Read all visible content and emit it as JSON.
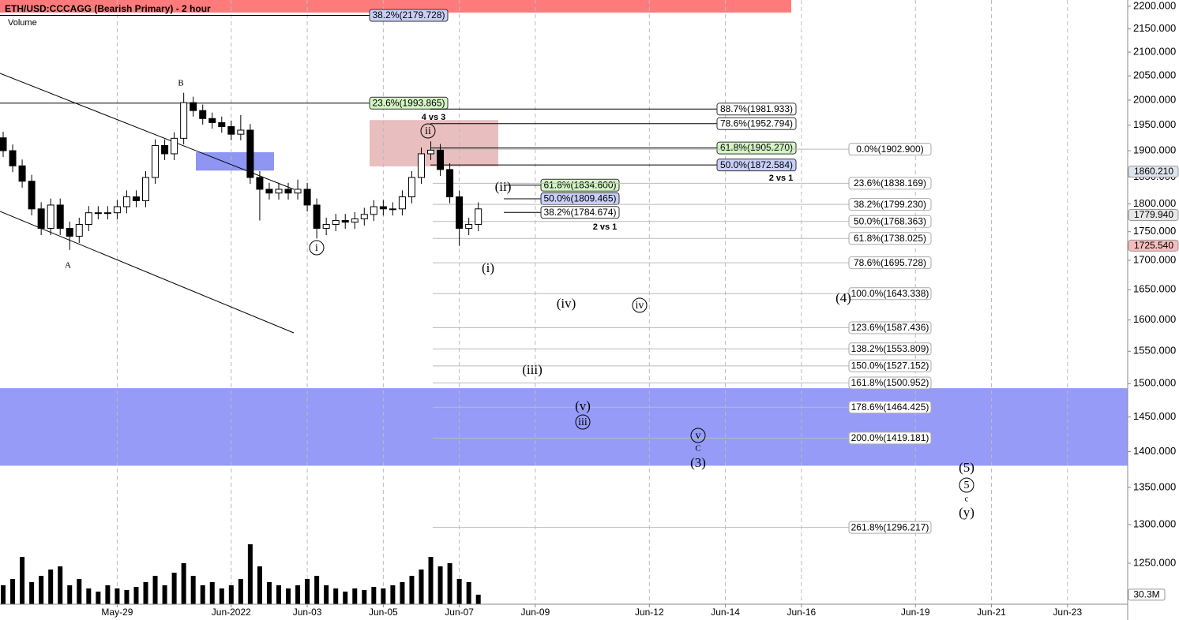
{
  "chart_data": {
    "type": "candlestick",
    "title": "ETH/USD:CCCAGG (Bearish Primary) - 2 hour",
    "volume_label": "Volume",
    "log_scale": true,
    "grid": true,
    "xlim": [
      "2022-05-25T22:00",
      "2022-06-24T14:00"
    ],
    "xticks": [
      {
        "value": "2022-05-29",
        "label": "May-29"
      },
      {
        "value": "2022-06-01",
        "label": "Jun-2022"
      },
      {
        "value": "2022-06-03",
        "label": "Jun-03"
      },
      {
        "value": "2022-06-05",
        "label": "Jun-05"
      },
      {
        "value": "2022-06-07",
        "label": "Jun-07"
      },
      {
        "value": "2022-06-09",
        "label": "Jun-09"
      },
      {
        "value": "2022-06-12",
        "label": "Jun-12"
      },
      {
        "value": "2022-06-14",
        "label": "Jun-14"
      },
      {
        "value": "2022-06-16",
        "label": "Jun-16"
      },
      {
        "value": "2022-06-19",
        "label": "Jun-19"
      },
      {
        "value": "2022-06-21",
        "label": "Jun-21"
      },
      {
        "value": "2022-06-23",
        "label": "Jun-23"
      }
    ],
    "ylim": [
      1199,
      2214
    ],
    "yticks": [
      {
        "value": 2200,
        "label": "2200.000"
      },
      {
        "value": 2150,
        "label": "2150.000"
      },
      {
        "value": 2100,
        "label": "2100.000"
      },
      {
        "value": 2050,
        "label": "2050.000"
      },
      {
        "value": 2000,
        "label": "2000.000"
      },
      {
        "value": 1950,
        "label": "1950.000"
      },
      {
        "value": 1900,
        "label": "1900.000"
      },
      {
        "value": 1850,
        "label": "1850.000"
      },
      {
        "value": 1800,
        "label": "1800.000"
      },
      {
        "value": 1750,
        "label": "1750.000"
      },
      {
        "value": 1700,
        "label": "1700.000"
      },
      {
        "value": 1650,
        "label": "1650.000"
      },
      {
        "value": 1600,
        "label": "1600.000"
      },
      {
        "value": 1550,
        "label": "1550.000"
      },
      {
        "value": 1500,
        "label": "1500.000"
      },
      {
        "value": 1450,
        "label": "1450.000"
      },
      {
        "value": 1400,
        "label": "1400.000"
      },
      {
        "value": 1350,
        "label": "1350.000"
      },
      {
        "value": 1300,
        "label": "1300.000"
      },
      {
        "value": 1250,
        "label": "1250.000"
      }
    ],
    "up_color": "#ffffff",
    "down_color": "#000000",
    "x": [
      "2022-05-26T00:00",
      "2022-05-26T06:00",
      "2022-05-26T12:00",
      "2022-05-26T18:00",
      "2022-05-27T00:00",
      "2022-05-27T06:00",
      "2022-05-27T12:00",
      "2022-05-27T18:00",
      "2022-05-28T00:00",
      "2022-05-28T06:00",
      "2022-05-28T12:00",
      "2022-05-28T18:00",
      "2022-05-29T00:00",
      "2022-05-29T06:00",
      "2022-05-29T12:00",
      "2022-05-29T18:00",
      "2022-05-30T00:00",
      "2022-05-30T06:00",
      "2022-05-30T12:00",
      "2022-05-30T18:00",
      "2022-05-31T00:00",
      "2022-05-31T06:00",
      "2022-05-31T12:00",
      "2022-05-31T18:00",
      "2022-06-01T00:00",
      "2022-06-01T06:00",
      "2022-06-01T12:00",
      "2022-06-01T18:00",
      "2022-06-02T00:00",
      "2022-06-02T06:00",
      "2022-06-02T12:00",
      "2022-06-02T18:00",
      "2022-06-03T00:00",
      "2022-06-03T06:00",
      "2022-06-03T12:00",
      "2022-06-03T18:00",
      "2022-06-04T00:00",
      "2022-06-04T06:00",
      "2022-06-04T12:00",
      "2022-06-04T18:00",
      "2022-06-05T00:00",
      "2022-06-05T06:00",
      "2022-06-05T12:00",
      "2022-06-05T18:00",
      "2022-06-06T00:00",
      "2022-06-06T06:00",
      "2022-06-06T12:00",
      "2022-06-06T18:00",
      "2022-06-07T00:00",
      "2022-06-07T06:00",
      "2022-06-07T12:00"
    ],
    "open": [
      1925,
      1900,
      1871,
      1842,
      1791,
      1756,
      1798,
      1756,
      1742,
      1763,
      1784,
      1784,
      1784,
      1795,
      1813,
      1806,
      1849,
      1910,
      1894,
      1924,
      1995,
      1979,
      1963,
      1955,
      1947,
      1932,
      1940,
      1849,
      1827,
      1820,
      1827,
      1820,
      1827,
      1798,
      1756,
      1763,
      1770,
      1767,
      1773,
      1781,
      1795,
      1791,
      1791,
      1813,
      1849,
      1894,
      1901,
      1864,
      1813,
      1756,
      1763
    ],
    "high": [
      1937,
      1912,
      1883,
      1854,
      1803,
      1810,
      1810,
      1768,
      1775,
      1796,
      1796,
      1796,
      1807,
      1825,
      1825,
      1861,
      1922,
      1922,
      1936,
      2015,
      2007,
      1991,
      1975,
      1967,
      1959,
      1970,
      1952,
      1861,
      1839,
      1839,
      1839,
      1845,
      1839,
      1810,
      1775,
      1782,
      1782,
      1785,
      1793,
      1807,
      1807,
      1803,
      1825,
      1861,
      1906,
      1918,
      1913,
      1876,
      1825,
      1775,
      1803
    ],
    "low": [
      1888,
      1859,
      1830,
      1779,
      1744,
      1744,
      1744,
      1718,
      1730,
      1751,
      1772,
      1772,
      1772,
      1783,
      1794,
      1794,
      1837,
      1882,
      1882,
      1912,
      1967,
      1951,
      1943,
      1935,
      1920,
      1920,
      1837,
      1770,
      1808,
      1808,
      1808,
      1808,
      1786,
      1738,
      1744,
      1751,
      1755,
      1755,
      1761,
      1769,
      1779,
      1779,
      1779,
      1801,
      1837,
      1882,
      1852,
      1801,
      1725,
      1744,
      1751
    ],
    "close": [
      1900,
      1871,
      1842,
      1791,
      1756,
      1798,
      1756,
      1742,
      1763,
      1784,
      1784,
      1784,
      1795,
      1813,
      1806,
      1849,
      1910,
      1894,
      1924,
      1995,
      1979,
      1963,
      1955,
      1947,
      1932,
      1940,
      1849,
      1827,
      1820,
      1827,
      1820,
      1827,
      1798,
      1756,
      1763,
      1770,
      1767,
      1773,
      1781,
      1795,
      1791,
      1791,
      1813,
      1849,
      1894,
      1901,
      1864,
      1813,
      1756,
      1763,
      1791
    ],
    "volume": [
      60,
      80,
      150,
      70,
      90,
      110,
      120,
      60,
      80,
      50,
      40,
      60,
      50,
      45,
      55,
      70,
      90,
      60,
      100,
      130,
      90,
      60,
      70,
      50,
      60,
      80,
      190,
      120,
      70,
      60,
      50,
      60,
      80,
      90,
      60,
      50,
      40,
      50,
      45,
      55,
      50,
      60,
      70,
      90,
      110,
      150,
      120,
      130,
      80,
      70,
      30.3
    ],
    "volume_color": "#000000",
    "volume_lim": [
      0,
      200
    ],
    "volume_tag": {
      "value": 30.3,
      "label": "30.3M"
    },
    "price_tags": [
      {
        "value": 1860.21,
        "label": "1860.210",
        "color": "#dfe5ef"
      },
      {
        "value": 1779.94,
        "label": "1779.940",
        "color": "#e8e8e8"
      },
      {
        "value": 1725.54,
        "label": "1725.540",
        "color": "#f6bcbc"
      }
    ],
    "zones": [
      {
        "low": 2186,
        "high": 2214,
        "color": "#ff7b7b"
      },
      {
        "low": 1870,
        "high": 1960,
        "color": "#e2a8a8"
      },
      {
        "low": 1862,
        "high": 1897,
        "color": "#8e95f2"
      },
      {
        "low": 1380,
        "high": 1493,
        "color": "#959bf6"
      }
    ],
    "fib_groups": [
      {
        "levels": [
          {
            "label": "38.2%(2179.728)",
            "value": 2179.728,
            "color": "#c9d0f7"
          },
          {
            "label": "23.6%(1993.865)",
            "value": 1993.865,
            "color": "#d3f5c3"
          }
        ]
      },
      {
        "levels": [
          {
            "label": "88.7%(1981.933)",
            "value": 1981.933,
            "color": "#ffffff"
          },
          {
            "label": "78.6%(1952.794)",
            "value": 1952.794,
            "color": "#ffffff"
          },
          {
            "label": "61.8%(1905.270)",
            "value": 1905.27,
            "color": "#d3f5c3"
          },
          {
            "label": "50.0%(1872.584)",
            "value": 1872.584,
            "color": "#c9d0f7"
          }
        ]
      },
      {
        "levels": [
          {
            "label": "61.8%(1834.600)",
            "value": 1834.6,
            "color": "#d3f5c3"
          },
          {
            "label": "50.0%(1809.465)",
            "value": 1809.465,
            "color": "#c9d0f7"
          },
          {
            "label": "38.2%(1784.674)",
            "value": 1784.674,
            "color": "#ffffff"
          }
        ]
      },
      {
        "levels": [
          {
            "label": "0.0%(1902.900)",
            "value": 1902.9,
            "color": "#ffffff"
          },
          {
            "label": "23.6%(1838.169)",
            "value": 1838.169,
            "color": "#ffffff"
          },
          {
            "label": "38.2%(1799.230)",
            "value": 1799.23,
            "color": "#ffffff"
          },
          {
            "label": "50.0%(1768.363)",
            "value": 1768.363,
            "color": "#ffffff"
          },
          {
            "label": "61.8%(1738.025)",
            "value": 1738.025,
            "color": "#ffffff"
          },
          {
            "label": "78.6%(1695.728)",
            "value": 1695.728,
            "color": "#ffffff"
          },
          {
            "label": "100.0%(1643.338)",
            "value": 1643.338,
            "color": "#ffffff"
          },
          {
            "label": "123.6%(1587.436)",
            "value": 1587.436,
            "color": "#ffffff"
          },
          {
            "label": "138.2%(1553.809)",
            "value": 1553.809,
            "color": "#ffffff"
          },
          {
            "label": "150.0%(1527.152)",
            "value": 1527.152,
            "color": "#ffffff"
          },
          {
            "label": "161.8%(1500.952)",
            "value": 1500.952,
            "color": "#ffffff"
          },
          {
            "label": "178.6%(1464.425)",
            "value": 1464.425,
            "color": "#ffffff"
          },
          {
            "label": "200.0%(1419.181)",
            "value": 1419.181,
            "color": "#ffffff"
          },
          {
            "label": "261.8%(1296.217)",
            "value": 1296.217,
            "color": "#ffffff"
          }
        ]
      }
    ],
    "annotations": [
      "4 vs 3",
      "2 vs 1",
      "2 vs 1"
    ],
    "wave_labels": [
      "B",
      "A",
      "i",
      "ii",
      "(ii)",
      "(i)",
      "(iv)",
      "iv",
      "(iii)",
      "(v)",
      "iii",
      "v",
      "C",
      "(3)",
      "(4)",
      "(5)",
      "5",
      "c",
      "(y)"
    ]
  }
}
